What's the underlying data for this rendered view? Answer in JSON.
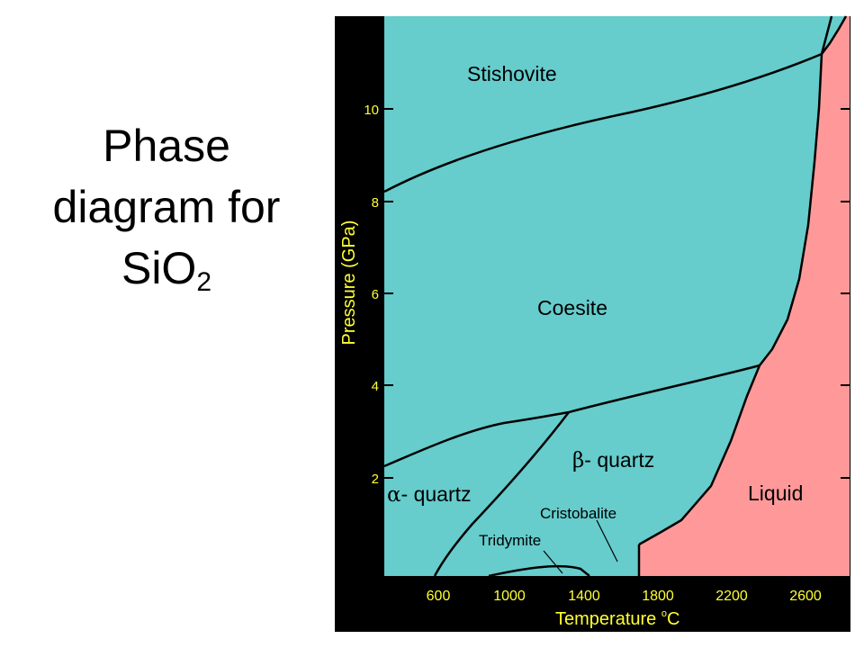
{
  "title": {
    "line1": "Phase",
    "line2": "diagram for",
    "formula_base": "SiO",
    "formula_sub": "2"
  },
  "colors": {
    "frame": "#000000",
    "axis_text": "#ffff33",
    "solid_region": "#66cccc",
    "liquid_region": "#ff9999",
    "boundary_line": "#000000"
  },
  "axes": {
    "x_label_main": "Temperature ",
    "x_label_sup": "o",
    "x_label_unit": "C",
    "y_label": "Pressure (GPa)",
    "x_ticks": [
      "600",
      "1000",
      "1400",
      "1800",
      "2200",
      "2600"
    ],
    "y_ticks": [
      "2",
      "4",
      "6",
      "8",
      "10"
    ]
  },
  "phases": {
    "stishovite": "Stishovite",
    "coesite": "Coesite",
    "beta_symbol": "β",
    "beta_text": "- quartz",
    "alpha_symbol": "α",
    "alpha_text": "- quartz",
    "liquid": "Liquid",
    "cristobalite": "Cristobalite",
    "tridymite": "Tridymite"
  }
}
